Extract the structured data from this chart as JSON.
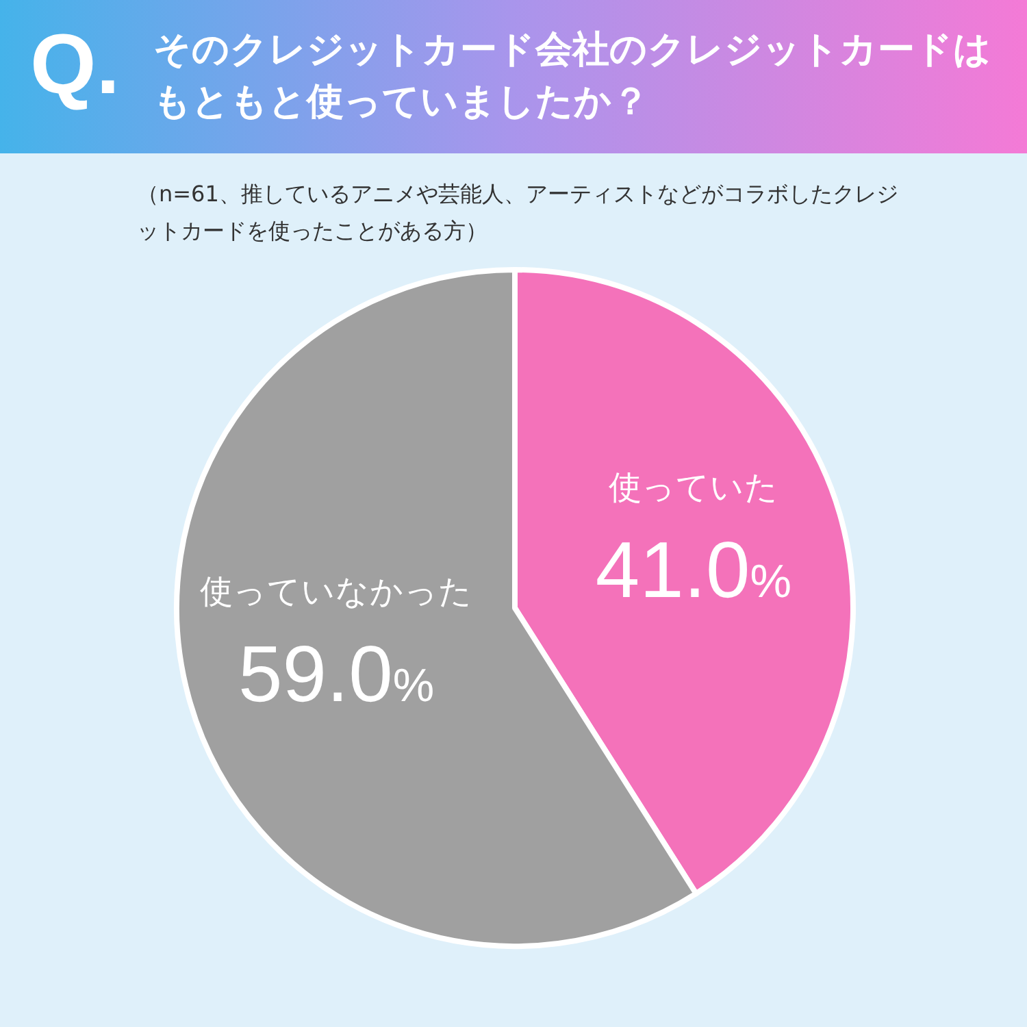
{
  "chart_data": {
    "type": "pie",
    "title": "そのクレジットカード会社のクレジットカードはもともと使っていましたか？",
    "subtitle": "（n=61、推しているアニメや芸能人、アーティストなどがコラボしたクレジットカードを使ったことがある方）",
    "annotations": [
      "Q."
    ],
    "categories": [
      "使っていた",
      "使っていなかった"
    ],
    "values": [
      41.0,
      59.0
    ],
    "colors": [
      "#f472ba",
      "#a0a0a0"
    ],
    "value_labels": [
      "41.0%",
      "59.0%"
    ]
  }
}
